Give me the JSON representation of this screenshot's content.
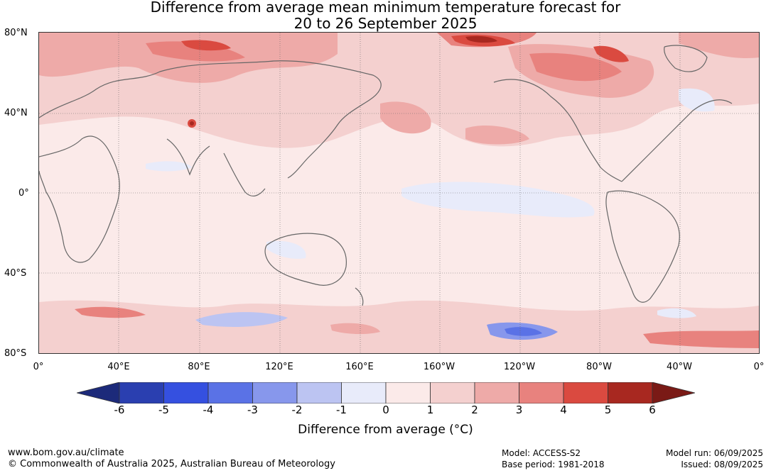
{
  "title": {
    "line1": "Difference from average mean minimum temperature forecast for",
    "line2": "20 to 26 September 2025"
  },
  "map": {
    "lat_labels": [
      "80°N",
      "40°N",
      "0°",
      "40°S",
      "80°S"
    ],
    "lon_labels": [
      "0°",
      "40°E",
      "80°E",
      "120°E",
      "160°E",
      "160°W",
      "120°W",
      "80°W",
      "40°W",
      "0°"
    ]
  },
  "colorbar": {
    "ticks": [
      "-6",
      "-5",
      "-4",
      "-3",
      "-2",
      "-1",
      "0",
      "1",
      "2",
      "3",
      "4",
      "5",
      "6"
    ],
    "colors": [
      "#1c2a7a",
      "#2a3fb0",
      "#3550e0",
      "#5a72e6",
      "#8797ec",
      "#bcc4f2",
      "#e8ebfa",
      "#fbeae9",
      "#f4d0cf",
      "#eeaaa8",
      "#e8827e",
      "#da4a40",
      "#a82820",
      "#7a1a16"
    ],
    "label": "Difference from average (°C)"
  },
  "footer": {
    "url": "www.bom.gov.au/climate",
    "copyright": "© Commonwealth of Australia 2025, Australian Bureau of Meteorology",
    "model": "Model: ACCESS-S2",
    "base_period": "Base period: 1981-2018",
    "model_run": "Model run: 06/09/2025",
    "issued": "Issued: 08/09/2025"
  }
}
